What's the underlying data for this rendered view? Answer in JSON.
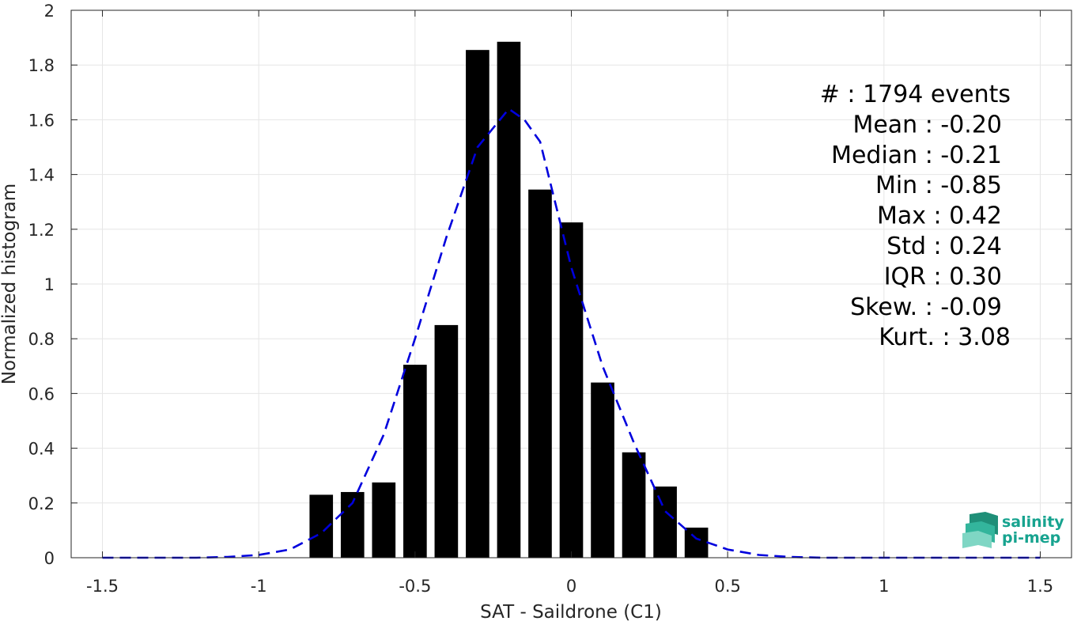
{
  "chart_data": {
    "type": "bar",
    "xlabel": "SAT - Saildrone (C1)",
    "ylabel": "Normalized histogram",
    "xlim": [
      -1.6,
      1.6
    ],
    "ylim": [
      0,
      2
    ],
    "grid": true,
    "x_ticks": [
      -1.5,
      -1,
      -0.5,
      0,
      0.5,
      1,
      1.5
    ],
    "x_tick_labels": [
      "-1.5",
      "-1",
      "-0.5",
      "0",
      "0.5",
      "1",
      "1.5"
    ],
    "y_ticks": [
      0,
      0.2,
      0.4,
      0.6,
      0.8,
      1,
      1.2,
      1.4,
      1.6,
      1.8,
      2
    ],
    "y_tick_labels": [
      "0",
      "0.2",
      "0.4",
      "0.6",
      "0.8",
      "1",
      "1.2",
      "1.4",
      "1.6",
      "1.8",
      "2"
    ],
    "bar_width": 0.075,
    "bar_color": "#000000",
    "bars": {
      "x": [
        -0.8,
        -0.7,
        -0.6,
        -0.5,
        -0.4,
        -0.3,
        -0.2,
        -0.1,
        0.0,
        0.1,
        0.2,
        0.3,
        0.4
      ],
      "values": [
        0.23,
        0.24,
        0.275,
        0.705,
        0.85,
        1.855,
        1.885,
        1.345,
        1.225,
        0.64,
        0.385,
        0.26,
        0.11
      ]
    },
    "fit_curve": {
      "style": "dashed",
      "color": "#0000dd",
      "x": [
        -1.5,
        -1.4,
        -1.3,
        -1.2,
        -1.1,
        -1.0,
        -0.9,
        -0.8,
        -0.7,
        -0.6,
        -0.5,
        -0.4,
        -0.3,
        -0.25,
        -0.2,
        -0.15,
        -0.1,
        0.0,
        0.1,
        0.2,
        0.3,
        0.4,
        0.5,
        0.6,
        0.7,
        0.8,
        0.9,
        1.0,
        1.1,
        1.2,
        1.3,
        1.4,
        1.5
      ],
      "y": [
        0.0,
        0.0,
        0.0,
        0.0,
        0.003,
        0.01,
        0.03,
        0.09,
        0.2,
        0.45,
        0.8,
        1.17,
        1.5,
        1.57,
        1.64,
        1.6,
        1.52,
        1.06,
        0.7,
        0.42,
        0.17,
        0.07,
        0.03,
        0.01,
        0.003,
        0.0,
        0.0,
        0.0,
        0.0,
        0.0,
        0.0,
        0.0,
        0.0
      ]
    },
    "stats": [
      "#  : 1794 events",
      "Mean : -0.20",
      "Median : -0.21",
      "Min : -0.85",
      "Max : 0.42",
      "Std : 0.24",
      "IQR : 0.30",
      "Skew. : -0.09",
      "Kurt. : 3.08"
    ]
  },
  "logo": {
    "line1": "salinity",
    "line2": "pi-mep",
    "color": "#17a38f"
  }
}
